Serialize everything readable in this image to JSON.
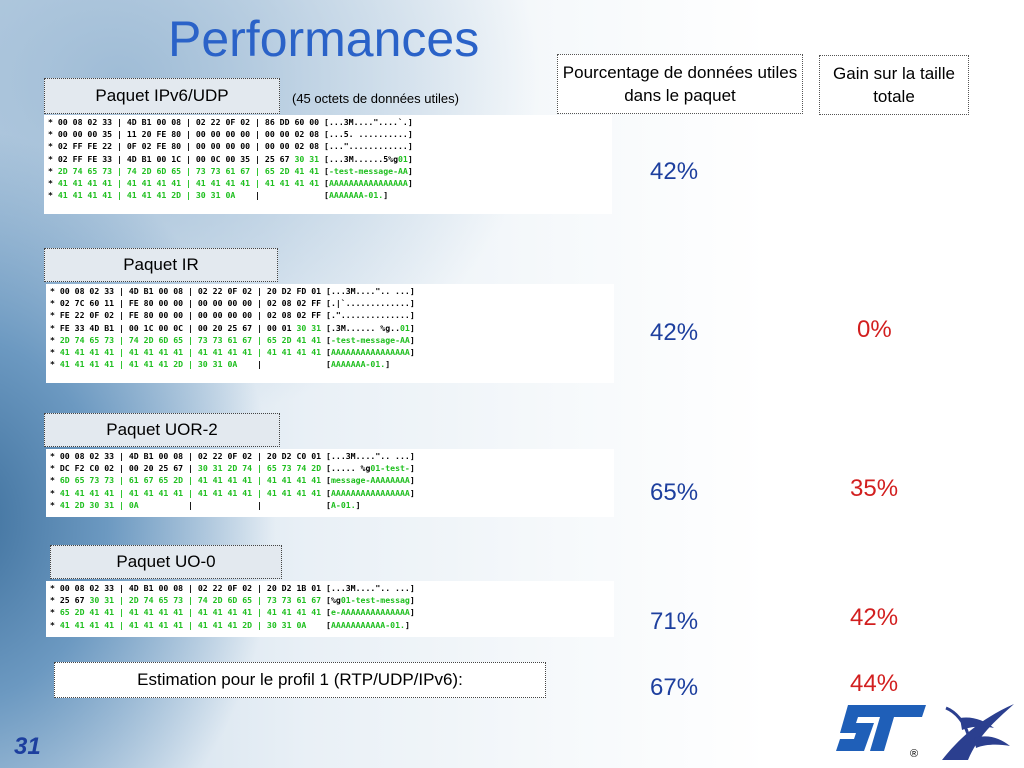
{
  "title": "Performances",
  "headers": {
    "useful_data": "Pourcentage de données utiles dans le paquet",
    "gain": "Gain sur la taille totale"
  },
  "note": "(45 octets de données utiles)",
  "packets": [
    {
      "label": "Paquet IPv6/UDP",
      "useful_pct": "42%",
      "gain": "",
      "hex_lines": [
        [
          [
            "* 00 08 02 33 | 4D B1 00 08 | 02 22 0F 02 | 86 DD 60 00 [...3M....\"....`.]",
            ""
          ]
        ],
        [
          [
            "* 00 00 00 35 | 11 20 FE 80 | 00 00 00 00 | 00 00 02 08 [...5. ..........]",
            ""
          ]
        ],
        [
          [
            "* 02 FF FE 22 | 0F 02 FE 80 | 00 00 00 00 | 00 00 02 08 [...\"............]",
            ""
          ]
        ],
        [
          [
            "* 02 FF FE 33 | 4D B1 00 1C | 00 0C 00 35 | 25 67 ",
            ""
          ],
          [
            "30 31",
            "g"
          ],
          [
            " [...3M......5%g",
            ""
          ],
          [
            "01",
            "g"
          ],
          [
            "]",
            ""
          ]
        ],
        [
          [
            "* ",
            ""
          ],
          [
            "2D 74 65 73 | 74 2D 6D 65 | 73 73 61 67 | 65 2D 41 41",
            "g"
          ],
          [
            " [",
            ""
          ],
          [
            "-test-message-AA",
            "g"
          ],
          [
            "]",
            ""
          ]
        ],
        [
          [
            "* ",
            ""
          ],
          [
            "41 41 41 41 | 41 41 41 41 | 41 41 41 41 | 41 41 41 41",
            "g"
          ],
          [
            " [",
            ""
          ],
          [
            "AAAAAAAAAAAAAAAA",
            "g"
          ],
          [
            "]",
            ""
          ]
        ],
        [
          [
            "* ",
            ""
          ],
          [
            "41 41 41 41 | 41 41 41 2D | 30 31 0A",
            "g"
          ],
          [
            "    |             [",
            ""
          ],
          [
            "AAAAAAA-01.",
            "g"
          ],
          [
            "]",
            ""
          ]
        ]
      ]
    },
    {
      "label": "Paquet IR",
      "useful_pct": "42%",
      "gain": "0%",
      "hex_lines": [
        [
          [
            "* 00 08 02 33 | 4D B1 00 08 | 02 22 0F 02 | 20 D2 FD 01 [...3M....\".. ...]",
            ""
          ]
        ],
        [
          [
            "* 02 7C 60 11 | FE 80 00 00 | 00 00 00 00 | 02 08 02 FF [.|`.............]",
            ""
          ]
        ],
        [
          [
            "* FE 22 0F 02 | FE 80 00 00 | 00 00 00 00 | 02 08 02 FF [.\"..............]",
            ""
          ]
        ],
        [
          [
            "* FE 33 4D B1 | 00 1C 00 0C | 00 20 25 67 | 00 01 ",
            ""
          ],
          [
            "30 31",
            "g"
          ],
          [
            " [.3M...... %g..",
            ""
          ],
          [
            "01",
            "g"
          ],
          [
            "]",
            ""
          ]
        ],
        [
          [
            "* ",
            ""
          ],
          [
            "2D 74 65 73 | 74 2D 6D 65 | 73 73 61 67 | 65 2D 41 41",
            "g"
          ],
          [
            " [",
            ""
          ],
          [
            "-test-message-AA",
            "g"
          ],
          [
            "]",
            ""
          ]
        ],
        [
          [
            "* ",
            ""
          ],
          [
            "41 41 41 41 | 41 41 41 41 | 41 41 41 41 | 41 41 41 41",
            "g"
          ],
          [
            " [",
            ""
          ],
          [
            "AAAAAAAAAAAAAAAA",
            "g"
          ],
          [
            "]",
            ""
          ]
        ],
        [
          [
            "* ",
            ""
          ],
          [
            "41 41 41 41 | 41 41 41 2D | 30 31 0A",
            "g"
          ],
          [
            "    |             [",
            ""
          ],
          [
            "AAAAAAA-01.",
            "g"
          ],
          [
            "]",
            ""
          ]
        ]
      ]
    },
    {
      "label": "Paquet UOR-2",
      "useful_pct": "65%",
      "gain": "35%",
      "hex_lines": [
        [
          [
            "* 00 08 02 33 | 4D B1 00 08 | 02 22 0F 02 | 20 D2 C0 01 [...3M....\".. ...]",
            ""
          ]
        ],
        [
          [
            "* DC F2 C0 02 | 00 20 25 67 | ",
            ""
          ],
          [
            "30 31 2D 74 | 65 73 74 2D",
            "g"
          ],
          [
            " [..... %g",
            ""
          ],
          [
            "01-test-",
            "g"
          ],
          [
            "]",
            ""
          ]
        ],
        [
          [
            "* ",
            ""
          ],
          [
            "6D 65 73 73 | 61 67 65 2D | 41 41 41 41 | 41 41 41 41",
            "g"
          ],
          [
            " [",
            ""
          ],
          [
            "message-AAAAAAAA",
            "g"
          ],
          [
            "]",
            ""
          ]
        ],
        [
          [
            "* ",
            ""
          ],
          [
            "41 41 41 41 | 41 41 41 41 | 41 41 41 41 | 41 41 41 41",
            "g"
          ],
          [
            " [",
            ""
          ],
          [
            "AAAAAAAAAAAAAAAA",
            "g"
          ],
          [
            "]",
            ""
          ]
        ],
        [
          [
            "* ",
            ""
          ],
          [
            "41 2D 30 31 | 0A",
            "g"
          ],
          [
            "          |             |             [",
            ""
          ],
          [
            "A-01.",
            "g"
          ],
          [
            "]",
            ""
          ]
        ]
      ]
    },
    {
      "label": "Paquet UO-0",
      "useful_pct": "71%",
      "gain": "42%",
      "hex_lines": [
        [
          [
            "* 00 08 02 33 | 4D B1 00 08 | 02 22 0F 02 | 20 D2 1B 01 [...3M....\".. ...]",
            ""
          ]
        ],
        [
          [
            "* 25 67 ",
            ""
          ],
          [
            "30 31 | 2D 74 65 73 | 74 2D 6D 65 | 73 73 61 67",
            "g"
          ],
          [
            " [%g",
            ""
          ],
          [
            "01-test-messag",
            "g"
          ],
          [
            "]",
            ""
          ]
        ],
        [
          [
            "* ",
            ""
          ],
          [
            "65 2D 41 41 | 41 41 41 41 | 41 41 41 41 | 41 41 41 41",
            "g"
          ],
          [
            " [",
            ""
          ],
          [
            "e-AAAAAAAAAAAAAA",
            "g"
          ],
          [
            "]",
            ""
          ]
        ],
        [
          [
            "* ",
            ""
          ],
          [
            "41 41 41 41 | 41 41 41 41 | 41 41 41 2D | 30 31 0A",
            "g"
          ],
          [
            "    [",
            ""
          ],
          [
            "AAAAAAAAAAA-01.",
            "g"
          ],
          [
            "]",
            ""
          ]
        ]
      ]
    }
  ],
  "estimation": {
    "label": "Estimation pour le profil 1 (RTP/UDP/IPv6):",
    "useful_pct": "67%",
    "gain": "44%"
  },
  "page_number": "31",
  "colors": {
    "title": "#2a62c8",
    "value_blue": "#1d3f9e",
    "value_red": "#d21f1f",
    "hex_green": "#1fbf1f"
  },
  "logos": [
    "st-logo",
    "bird-emblem-logo"
  ],
  "registered_mark": "®"
}
